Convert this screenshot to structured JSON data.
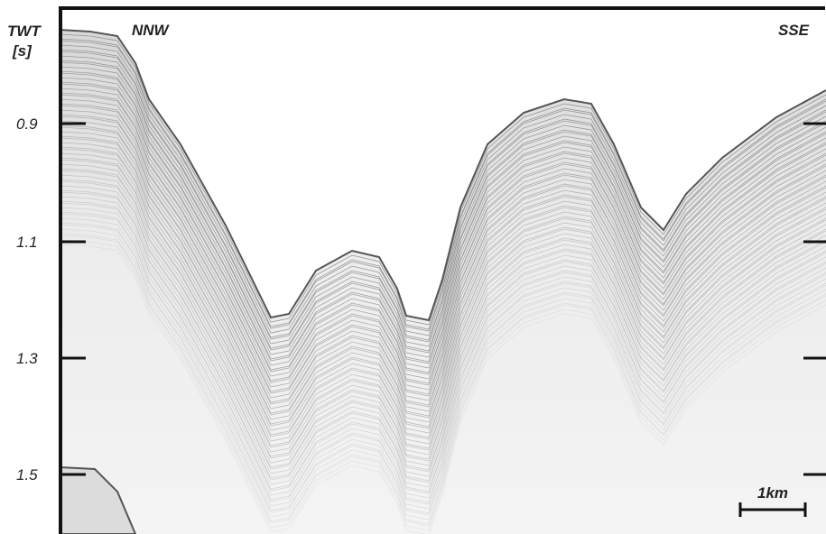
{
  "axis": {
    "title": "TWT",
    "unit": "[s]",
    "ticks": [
      0.9,
      1.1,
      1.3,
      1.5
    ]
  },
  "directions": {
    "left": "NNW",
    "right": "SSE"
  },
  "scale_bar": "1km"
}
